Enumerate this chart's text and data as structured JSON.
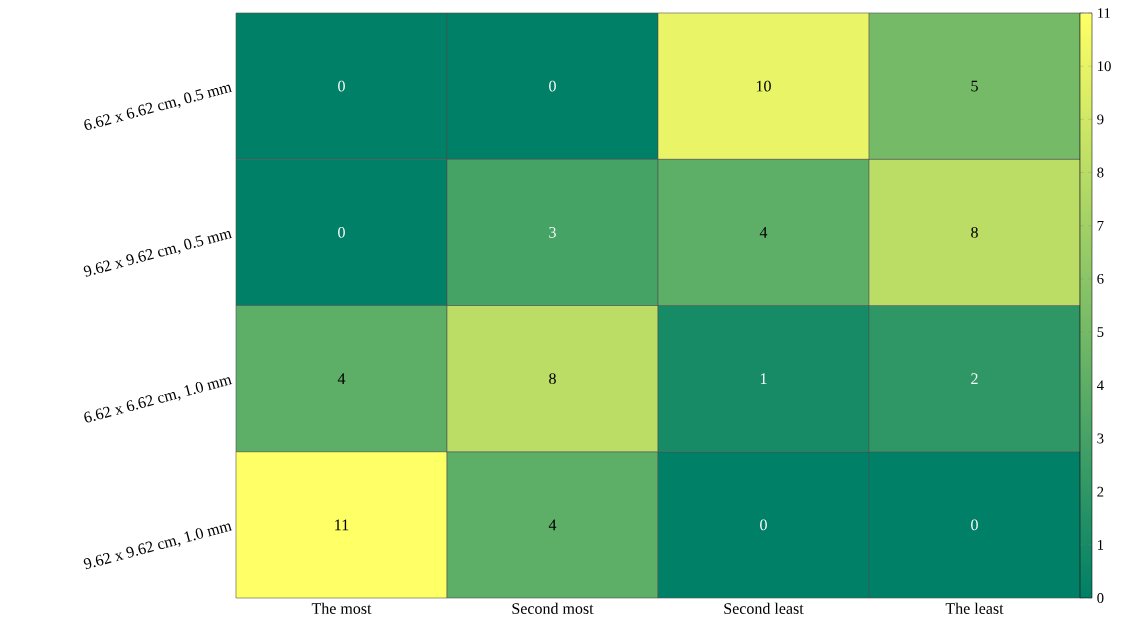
{
  "chart_data": {
    "type": "heatmap",
    "categories": [
      "The most",
      "Second most",
      "Second least",
      "The least"
    ],
    "y_categories": [
      "6.62 x 6.62 cm, 0.5 mm",
      "9.62 x 9.62 cm, 0.5 mm",
      "6.62 x 6.62 cm, 1.0 mm",
      "9.62 x 9.62 cm, 1.0 mm"
    ],
    "cells": [
      [
        0,
        0,
        10,
        5
      ],
      [
        0,
        3,
        4,
        8
      ],
      [
        4,
        8,
        1,
        2
      ],
      [
        11,
        4,
        0,
        0
      ]
    ],
    "data_labels": true,
    "clim": [
      0,
      11
    ],
    "cticks": [
      0,
      1,
      2,
      3,
      4,
      5,
      6,
      7,
      8,
      9,
      10,
      11
    ]
  }
}
